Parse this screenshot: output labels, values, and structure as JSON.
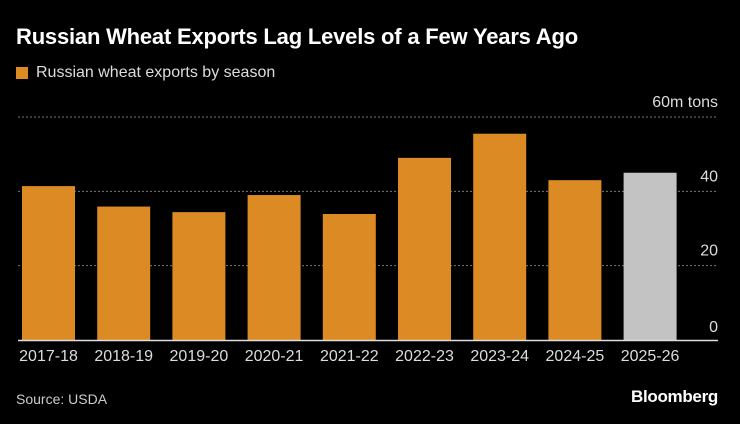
{
  "title": "Russian Wheat Exports Lag Levels of a Few Years Ago",
  "source": "Source: USDA",
  "logo": "Bloomberg",
  "colors": {
    "bar": "#DC8A24",
    "highlight": "#C3C3C3",
    "background": "#000000"
  },
  "chart_data": {
    "type": "bar",
    "title": "Russian Wheat Exports Lag Levels of a Few Years Ago",
    "legend": [
      {
        "name": "Russian wheat exports by season",
        "color": "#DC8A24"
      }
    ],
    "legend_position": "top-left",
    "categories": [
      "2017-18",
      "2018-19",
      "2019-20",
      "2020-21",
      "2021-22",
      "2022-23",
      "2023-24",
      "2024-25",
      "2025-26"
    ],
    "series": [
      {
        "name": "Russian wheat exports by season",
        "values": [
          41.4,
          35.9,
          34.4,
          39.0,
          33.9,
          49.0,
          55.5,
          43.0,
          45.0
        ]
      }
    ],
    "highlighted_categories": [
      "2025-26"
    ],
    "ylim": [
      0,
      60
    ],
    "yticks": [
      0,
      20,
      40,
      60
    ],
    "ytick_labels": [
      "0",
      "20",
      "40",
      "60m tons"
    ],
    "y_axis_position": "right",
    "grid": true
  }
}
